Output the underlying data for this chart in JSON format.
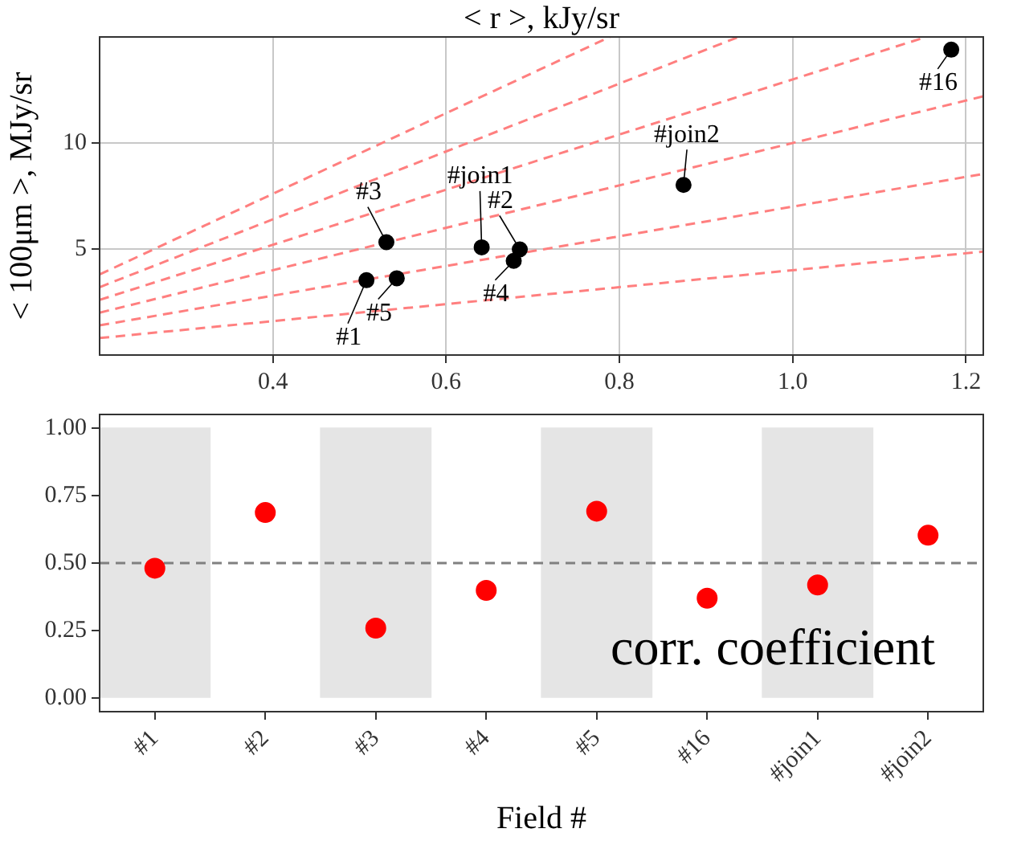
{
  "chart_data": [
    {
      "type": "scatter",
      "xlabel": "< r >, kJy/sr",
      "ylabel": "< 100μm >, MJy/sr",
      "xlim": [
        0.2,
        1.22
      ],
      "xticks": [
        0.4,
        0.6,
        0.8,
        {
          "value": 1,
          "label": "1.0"
        },
        1.2
      ],
      "ylim": [
        0,
        15
      ],
      "yticks": [
        5,
        10
      ],
      "grid": true,
      "series": [
        {
          "type": "scatter",
          "color": "#000000",
          "marker": "circle",
          "x": [
            0.508,
            0.685,
            0.531,
            0.678,
            0.543,
            1.183,
            0.641,
            0.874
          ],
          "values": [
            3.53,
            4.98,
            5.32,
            4.44,
            3.62,
            14.4,
            5.08,
            8.02
          ]
        },
        {
          "type": "line",
          "color": "#ff7f7f",
          "line_style": "dashed",
          "marker": "none",
          "x": [
            0.2,
            1.22
          ],
          "values": [
            0.8,
            4.88
          ]
        },
        {
          "type": "line",
          "color": "#ff7f7f",
          "line_style": "dashed",
          "marker": "none",
          "x": [
            0.2,
            1.22
          ],
          "values": [
            1.4,
            8.54
          ]
        },
        {
          "type": "line",
          "color": "#ff7f7f",
          "line_style": "dashed",
          "marker": "none",
          "x": [
            0.2,
            1.22
          ],
          "values": [
            2,
            12.2
          ]
        },
        {
          "type": "line",
          "color": "#ff7f7f",
          "line_style": "dashed",
          "marker": "none",
          "x": [
            0.2,
            1.154
          ],
          "values": [
            2.6,
            15
          ]
        },
        {
          "type": "line",
          "color": "#ff7f7f",
          "line_style": "dashed",
          "marker": "none",
          "x": [
            0.2,
            0.9375
          ],
          "values": [
            3.2,
            15
          ]
        },
        {
          "type": "line",
          "color": "#ff7f7f",
          "line_style": "dashed",
          "marker": "none",
          "x": [
            0.2,
            0.789
          ],
          "values": [
            3.8,
            15
          ]
        }
      ],
      "annotations": [
        {
          "text": "#1",
          "x": 0.508,
          "y": 3.53
        },
        {
          "text": "#2",
          "x": 0.685,
          "y": 4.98
        },
        {
          "text": "#3",
          "x": 0.531,
          "y": 5.32
        },
        {
          "text": "#4",
          "x": 0.678,
          "y": 4.44
        },
        {
          "text": "#5",
          "x": 0.543,
          "y": 3.62
        },
        {
          "text": "#16",
          "x": 1.183,
          "y": 14.4
        },
        {
          "text": "#join1",
          "x": 0.641,
          "y": 5.08
        },
        {
          "text": "#join2",
          "x": 0.874,
          "y": 8.02
        }
      ]
    },
    {
      "type": "scatter",
      "xlabel": "Field #",
      "categories": [
        "#1",
        "#2",
        "#3",
        "#4",
        "#5",
        "#16",
        "#join1",
        "#join2"
      ],
      "ylim": [
        -0.05,
        1.05
      ],
      "yticks": [
        {
          "value": 0,
          "label": "0.00"
        },
        {
          "value": 0.25,
          "label": "0.25"
        },
        {
          "value": 0.5,
          "label": "0.50"
        },
        {
          "value": 0.75,
          "label": "0.75"
        },
        {
          "value": 1,
          "label": "1.00"
        }
      ],
      "grid": false,
      "ref_lines": [
        {
          "axis": "y",
          "value": 0.5,
          "color": "#808080",
          "line_style": "dashed"
        }
      ],
      "annotations": [
        "corr. coefficient"
      ],
      "series": [
        {
          "type": "bar",
          "color": "#e5e5e5",
          "values": [
            1,
            null,
            1,
            null,
            1,
            null,
            1,
            null
          ]
        },
        {
          "type": "scatter",
          "color": "#ff0000",
          "marker": "circle",
          "values": [
            0.481,
            0.687,
            0.259,
            0.399,
            0.692,
            0.37,
            0.419,
            0.603
          ]
        }
      ]
    }
  ]
}
